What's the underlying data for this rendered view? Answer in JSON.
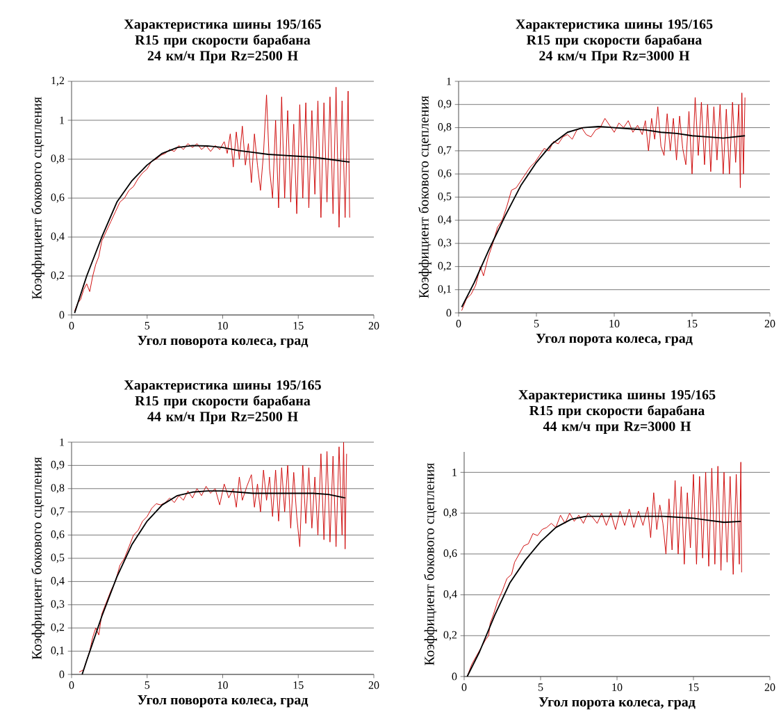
{
  "chart_data": [
    {
      "type": "line",
      "title": "Характеристика шины 195/165 R15 при скорости барабана 24 км/ч При Rz=2500 Н",
      "xlabel": "Угол поворота колеса, град",
      "ylabel": "Коэффициент бокового сцепления",
      "xlim": [
        0,
        20
      ],
      "ylim": [
        0,
        1.2
      ],
      "xticks": [
        0,
        5,
        10,
        15,
        20
      ],
      "yticks": [
        0,
        {
          "value": 0.2,
          "label": "0,2"
        },
        {
          "value": 0.4,
          "label": "0,4"
        },
        {
          "value": 0.6,
          "label": "0,6"
        },
        {
          "value": 0.8,
          "label": "0,8"
        },
        1,
        {
          "value": 1.2,
          "label": "1,2"
        }
      ],
      "grid": "y",
      "series": [
        {
          "color": "#cc0000",
          "x": [
            0.2,
            0.4,
            0.6,
            0.8,
            1,
            1.2,
            1.4,
            1.6,
            1.8,
            2,
            2.3,
            2.6,
            2.9,
            3.2,
            3.5,
            3.8,
            4.1,
            4.4,
            4.7,
            5,
            5.3,
            5.6,
            5.9,
            6.2,
            6.5,
            6.8,
            7.1,
            7.4,
            7.7,
            8,
            8.3,
            8.6,
            8.9,
            9.2,
            9.5,
            9.8,
            10.1,
            10.3,
            10.5,
            10.7,
            10.9,
            11.1,
            11.3,
            11.5,
            11.7,
            11.9,
            12.1,
            12.3,
            12.5,
            12.7,
            12.9,
            13.1,
            13.3,
            13.5,
            13.7,
            13.9,
            14.1,
            14.3,
            14.5,
            14.7,
            14.9,
            15.1,
            15.3,
            15.5,
            15.7,
            15.9,
            16.1,
            16.3,
            16.5,
            16.7,
            16.9,
            17.1,
            17.3,
            17.5,
            17.7,
            17.9,
            18.1,
            18.3,
            18.4
          ],
          "values": [
            0.02,
            0.06,
            0.08,
            0.13,
            0.16,
            0.12,
            0.2,
            0.26,
            0.3,
            0.38,
            0.43,
            0.48,
            0.53,
            0.58,
            0.6,
            0.64,
            0.66,
            0.7,
            0.73,
            0.75,
            0.79,
            0.8,
            0.82,
            0.83,
            0.85,
            0.84,
            0.87,
            0.85,
            0.88,
            0.86,
            0.88,
            0.85,
            0.87,
            0.84,
            0.87,
            0.85,
            0.89,
            0.83,
            0.93,
            0.76,
            0.94,
            0.8,
            0.97,
            0.77,
            0.88,
            0.68,
            0.93,
            0.77,
            0.64,
            0.83,
            1.13,
            0.75,
            0.6,
            1.0,
            0.55,
            1.12,
            0.6,
            1.05,
            0.58,
            0.98,
            0.52,
            1.08,
            0.6,
            1.09,
            0.55,
            1.05,
            0.62,
            1.1,
            0.5,
            1.09,
            0.58,
            1.12,
            0.52,
            1.17,
            0.45,
            1.1,
            0.5,
            1.15,
            0.5
          ]
        },
        {
          "color": "#000000",
          "x": [
            0.2,
            1,
            2,
            3,
            4,
            5,
            6,
            7,
            8,
            9,
            10,
            11,
            12,
            13,
            14,
            15,
            16,
            17,
            18.4
          ],
          "values": [
            0.01,
            0.2,
            0.4,
            0.58,
            0.69,
            0.77,
            0.83,
            0.86,
            0.87,
            0.868,
            0.86,
            0.845,
            0.835,
            0.825,
            0.82,
            0.815,
            0.81,
            0.8,
            0.785
          ]
        }
      ]
    },
    {
      "type": "line",
      "title": "Характеристика шины 195/165 R15 при скорости барабана 24 км/ч При Rz=3000 Н",
      "xlabel": "Угол порота колеса, град",
      "ylabel": "Коэффициент бокового сцепления",
      "xlim": [
        0,
        20
      ],
      "ylim": [
        0,
        1
      ],
      "xticks": [
        0,
        5,
        10,
        15,
        20
      ],
      "yticks": [
        0,
        {
          "value": 0.1,
          "label": "0,1"
        },
        {
          "value": 0.2,
          "label": "0,2"
        },
        {
          "value": 0.3,
          "label": "0,3"
        },
        {
          "value": 0.4,
          "label": "0,4"
        },
        {
          "value": 0.5,
          "label": "0,5"
        },
        {
          "value": 0.6,
          "label": "0,6"
        },
        {
          "value": 0.7,
          "label": "0,7"
        },
        {
          "value": 0.8,
          "label": "0,8"
        },
        {
          "value": 0.9,
          "label": "0,9"
        },
        1
      ],
      "grid": "y",
      "series": [
        {
          "color": "#cc0000",
          "x": [
            0.2,
            0.5,
            0.8,
            1.1,
            1.4,
            1.6,
            1.9,
            2.2,
            2.5,
            2.8,
            3.1,
            3.4,
            3.7,
            4,
            4.3,
            4.6,
            4.9,
            5.2,
            5.5,
            5.8,
            6.1,
            6.4,
            6.7,
            7,
            7.3,
            7.6,
            7.9,
            8.2,
            8.5,
            8.8,
            9.1,
            9.4,
            9.7,
            10,
            10.3,
            10.6,
            10.9,
            11.2,
            11.5,
            11.8,
            12,
            12.2,
            12.4,
            12.6,
            12.8,
            13,
            13.2,
            13.4,
            13.6,
            13.8,
            14,
            14.2,
            14.4,
            14.6,
            14.8,
            15,
            15.2,
            15.4,
            15.6,
            15.8,
            16,
            16.2,
            16.4,
            16.6,
            16.8,
            17,
            17.2,
            17.4,
            17.6,
            17.8,
            18,
            18.1,
            18.2,
            18.3,
            18.4
          ],
          "values": [
            0.01,
            0.06,
            0.08,
            0.12,
            0.2,
            0.16,
            0.24,
            0.3,
            0.37,
            0.4,
            0.46,
            0.53,
            0.54,
            0.57,
            0.6,
            0.63,
            0.65,
            0.68,
            0.71,
            0.7,
            0.74,
            0.73,
            0.76,
            0.77,
            0.75,
            0.79,
            0.8,
            0.77,
            0.76,
            0.79,
            0.8,
            0.84,
            0.81,
            0.78,
            0.82,
            0.8,
            0.83,
            0.78,
            0.81,
            0.77,
            0.83,
            0.7,
            0.84,
            0.75,
            0.89,
            0.72,
            0.68,
            0.86,
            0.7,
            0.84,
            0.66,
            0.85,
            0.71,
            0.64,
            0.87,
            0.6,
            0.93,
            0.68,
            0.91,
            0.64,
            0.9,
            0.61,
            0.89,
            0.66,
            0.9,
            0.6,
            0.88,
            0.6,
            0.91,
            0.65,
            0.9,
            0.54,
            0.95,
            0.6,
            0.93
          ]
        },
        {
          "color": "#000000",
          "x": [
            0.2,
            1,
            2,
            3,
            4,
            5,
            6,
            7,
            8,
            9,
            10,
            11,
            12,
            13,
            14,
            15,
            16,
            17,
            18.4
          ],
          "values": [
            0.025,
            0.13,
            0.28,
            0.42,
            0.55,
            0.65,
            0.73,
            0.78,
            0.8,
            0.805,
            0.8,
            0.795,
            0.79,
            0.78,
            0.775,
            0.765,
            0.76,
            0.755,
            0.765
          ]
        }
      ]
    },
    {
      "type": "line",
      "title": "Характеристика шины 195/165 R15 при скорости барабана 44 км/ч При Rz=2500 Н",
      "xlabel": "Угол поворота колеса, град",
      "ylabel": "Коэффициент бокового сцепления",
      "xlim": [
        0,
        20
      ],
      "ylim": [
        0,
        1
      ],
      "xticks": [
        0,
        5,
        10,
        15,
        20
      ],
      "yticks": [
        0,
        {
          "value": 0.1,
          "label": "0,1"
        },
        {
          "value": 0.2,
          "label": "0,2"
        },
        {
          "value": 0.3,
          "label": "0,3"
        },
        {
          "value": 0.4,
          "label": "0,4"
        },
        {
          "value": 0.5,
          "label": "0,5"
        },
        {
          "value": 0.6,
          "label": "0,6"
        },
        {
          "value": 0.7,
          "label": "0,7"
        },
        {
          "value": 0.8,
          "label": "0,8"
        },
        {
          "value": 0.9,
          "label": "0,9"
        },
        1
      ],
      "grid": "y",
      "series": [
        {
          "color": "#cc0000",
          "x": [
            0.5,
            0.8,
            1,
            1.2,
            1.4,
            1.6,
            1.8,
            2,
            2.3,
            2.6,
            2.9,
            3.2,
            3.5,
            3.8,
            4.1,
            4.4,
            4.7,
            5,
            5.3,
            5.6,
            5.9,
            6.2,
            6.5,
            6.8,
            7.1,
            7.4,
            7.7,
            8,
            8.3,
            8.6,
            8.9,
            9.2,
            9.5,
            9.8,
            10.1,
            10.4,
            10.7,
            10.9,
            11.1,
            11.3,
            11.6,
            11.9,
            12.1,
            12.3,
            12.5,
            12.7,
            12.9,
            13.1,
            13.3,
            13.5,
            13.7,
            13.9,
            14.1,
            14.3,
            14.5,
            14.7,
            14.9,
            15.1,
            15.3,
            15.5,
            15.7,
            15.9,
            16.1,
            16.3,
            16.5,
            16.7,
            16.9,
            17.1,
            17.3,
            17.5,
            17.7,
            17.9,
            18,
            18.1,
            18.2
          ],
          "values": [
            0.01,
            0.02,
            0.06,
            0.1,
            0.16,
            0.2,
            0.17,
            0.26,
            0.31,
            0.36,
            0.4,
            0.47,
            0.5,
            0.55,
            0.6,
            0.62,
            0.66,
            0.68,
            0.715,
            0.735,
            0.73,
            0.74,
            0.76,
            0.74,
            0.77,
            0.75,
            0.79,
            0.76,
            0.8,
            0.77,
            0.81,
            0.78,
            0.8,
            0.73,
            0.82,
            0.76,
            0.8,
            0.72,
            0.85,
            0.75,
            0.81,
            0.86,
            0.72,
            0.82,
            0.7,
            0.88,
            0.75,
            0.85,
            0.68,
            0.88,
            0.66,
            0.89,
            0.7,
            0.9,
            0.63,
            0.87,
            0.68,
            0.55,
            0.9,
            0.65,
            0.89,
            0.63,
            0.85,
            0.6,
            0.95,
            0.58,
            0.96,
            0.57,
            0.94,
            0.55,
            0.98,
            0.6,
            1.0,
            0.54,
            0.95
          ]
        },
        {
          "color": "#000000",
          "x": [
            0.7,
            1,
            2,
            3,
            4,
            5,
            6,
            7,
            8,
            9,
            10,
            11,
            12,
            13,
            14,
            15,
            16,
            17,
            18.1
          ],
          "values": [
            0,
            0.06,
            0.25,
            0.42,
            0.56,
            0.66,
            0.73,
            0.77,
            0.785,
            0.79,
            0.79,
            0.785,
            0.78,
            0.78,
            0.78,
            0.78,
            0.78,
            0.775,
            0.76
          ]
        }
      ]
    },
    {
      "type": "line",
      "title": "Характеристика шины 195/165 R15 при скорости барабана 44 км/ч при Rz=3000 Н",
      "xlabel": "Угол порота колеса, град",
      "ylabel": "Коэффициент бокового сцепления",
      "xlim": [
        0,
        20
      ],
      "ylim": [
        0,
        1.1
      ],
      "xticks": [
        0,
        5,
        10,
        15,
        20
      ],
      "yticks": [
        0,
        {
          "value": 0.2,
          "label": "0,2"
        },
        {
          "value": 0.4,
          "label": "0,4"
        },
        {
          "value": 0.6,
          "label": "0,6"
        },
        {
          "value": 0.8,
          "label": "0,8"
        },
        1
      ],
      "grid": "y",
      "series": [
        {
          "color": "#cc0000",
          "x": [
            0.2,
            0.5,
            0.8,
            1.1,
            1.4,
            1.6,
            1.7,
            1.9,
            2.2,
            2.5,
            2.8,
            3.1,
            3.3,
            3.6,
            3.9,
            4.2,
            4.5,
            4.8,
            5.1,
            5.4,
            5.7,
            6,
            6.3,
            6.6,
            6.9,
            7.2,
            7.5,
            7.8,
            8.1,
            8.4,
            8.7,
            9,
            9.3,
            9.6,
            9.9,
            10.2,
            10.5,
            10.8,
            11.1,
            11.4,
            11.7,
            12,
            12.2,
            12.4,
            12.6,
            12.8,
            13,
            13.2,
            13.4,
            13.6,
            13.8,
            14,
            14.2,
            14.4,
            14.6,
            14.8,
            15,
            15.2,
            15.4,
            15.6,
            15.8,
            16,
            16.2,
            16.4,
            16.6,
            16.8,
            17,
            17.2,
            17.4,
            17.6,
            17.8,
            18,
            18.1,
            18.15
          ],
          "values": [
            0,
            0.06,
            0.1,
            0.14,
            0.18,
            0.2,
            0.26,
            0.3,
            0.37,
            0.42,
            0.48,
            0.5,
            0.56,
            0.6,
            0.64,
            0.65,
            0.7,
            0.69,
            0.72,
            0.73,
            0.75,
            0.73,
            0.79,
            0.75,
            0.8,
            0.76,
            0.79,
            0.75,
            0.8,
            0.78,
            0.75,
            0.8,
            0.74,
            0.8,
            0.72,
            0.81,
            0.74,
            0.82,
            0.73,
            0.81,
            0.74,
            0.83,
            0.68,
            0.9,
            0.72,
            0.84,
            0.75,
            0.6,
            0.87,
            0.62,
            0.96,
            0.6,
            0.93,
            0.55,
            0.9,
            0.63,
            0.99,
            0.55,
            0.98,
            0.58,
            1.0,
            0.54,
            1.02,
            0.55,
            1.03,
            0.52,
            1.0,
            0.56,
            0.98,
            0.5,
            0.99,
            0.55,
            1.05,
            0.51
          ]
        },
        {
          "color": "#000000",
          "x": [
            0.2,
            1,
            2,
            3,
            4,
            5,
            6,
            7,
            8,
            9,
            10,
            11,
            12,
            13,
            14,
            15,
            16,
            17,
            18.1
          ],
          "values": [
            0,
            0.12,
            0.3,
            0.46,
            0.57,
            0.66,
            0.73,
            0.77,
            0.785,
            0.785,
            0.785,
            0.785,
            0.785,
            0.785,
            0.78,
            0.775,
            0.765,
            0.755,
            0.76
          ]
        }
      ]
    }
  ]
}
